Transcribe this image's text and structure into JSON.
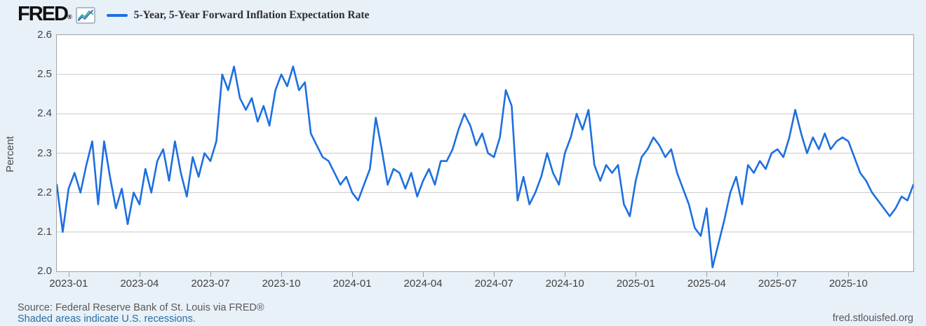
{
  "header": {
    "logo_text": "FRED",
    "registered_mark": "®"
  },
  "footer": {
    "source_text": "Source: Federal Reserve Bank of St. Louis via FRED®",
    "recession_note": "Shaded areas indicate U.S. recessions.",
    "site_link": "fred.stlouisfed.org"
  },
  "colors": {
    "line": "#1d6fe0",
    "background": "#e8f0f8",
    "plot_background": "#ffffff",
    "gridline": "#c9c9c9",
    "plot_border": "#a3a3a3",
    "link": "#2d6da3",
    "icon_teal": "#35b88e",
    "icon_blue": "#3d6fc7"
  },
  "chart_data": {
    "type": "line",
    "title": "5-Year, 5-Year Forward Inflation Expectation Rate",
    "ylabel": "Percent",
    "xlabel": "",
    "ylim": [
      2.0,
      2.6
    ],
    "grid": true,
    "legend_position": "top",
    "y_tick_labels": [
      "2.6",
      "2.5",
      "2.4",
      "2.3",
      "2.2",
      "2.1",
      "2.0"
    ],
    "x_tick_labels": [
      "2023-01",
      "2023-04",
      "2023-07",
      "2023-10",
      "2024-01",
      "2024-04",
      "2024-07",
      "2024-10",
      "2025-01",
      "2025-04",
      "2025-07",
      "2025-10"
    ],
    "x_tick_indices": [
      2,
      14,
      26,
      38,
      50,
      62,
      74,
      86,
      98,
      110,
      122,
      134
    ],
    "x_range_note": "daily series from late Dec 2022 through late Dec 2025, sampled ~weekly",
    "series": [
      {
        "name": "5-Year, 5-Year Forward Inflation Expectation Rate",
        "color": "#1d6fe0",
        "start": "2022-12",
        "end": "2025-12",
        "values": [
          2.22,
          2.1,
          2.21,
          2.25,
          2.2,
          2.27,
          2.33,
          2.17,
          2.33,
          2.24,
          2.16,
          2.21,
          2.12,
          2.2,
          2.17,
          2.26,
          2.2,
          2.28,
          2.31,
          2.23,
          2.33,
          2.25,
          2.19,
          2.29,
          2.24,
          2.3,
          2.28,
          2.33,
          2.5,
          2.46,
          2.52,
          2.44,
          2.41,
          2.44,
          2.38,
          2.42,
          2.37,
          2.46,
          2.5,
          2.47,
          2.52,
          2.46,
          2.48,
          2.35,
          2.32,
          2.29,
          2.28,
          2.25,
          2.22,
          2.24,
          2.2,
          2.18,
          2.22,
          2.26,
          2.39,
          2.31,
          2.22,
          2.26,
          2.25,
          2.21,
          2.25,
          2.19,
          2.23,
          2.26,
          2.22,
          2.28,
          2.28,
          2.31,
          2.36,
          2.4,
          2.37,
          2.32,
          2.35,
          2.3,
          2.29,
          2.34,
          2.46,
          2.42,
          2.18,
          2.24,
          2.17,
          2.2,
          2.24,
          2.3,
          2.25,
          2.22,
          2.3,
          2.34,
          2.4,
          2.36,
          2.41,
          2.27,
          2.23,
          2.27,
          2.25,
          2.27,
          2.17,
          2.14,
          2.23,
          2.29,
          2.31,
          2.34,
          2.32,
          2.29,
          2.31,
          2.25,
          2.21,
          2.17,
          2.11,
          2.09,
          2.16,
          2.01,
          2.07,
          2.13,
          2.2,
          2.24,
          2.17,
          2.27,
          2.25,
          2.28,
          2.26,
          2.3,
          2.31,
          2.29,
          2.34,
          2.41,
          2.35,
          2.3,
          2.34,
          2.31,
          2.35,
          2.31,
          2.33,
          2.34,
          2.33,
          2.29,
          2.25,
          2.23,
          2.2,
          2.18,
          2.16,
          2.14,
          2.16,
          2.19,
          2.18,
          2.22
        ]
      }
    ]
  }
}
